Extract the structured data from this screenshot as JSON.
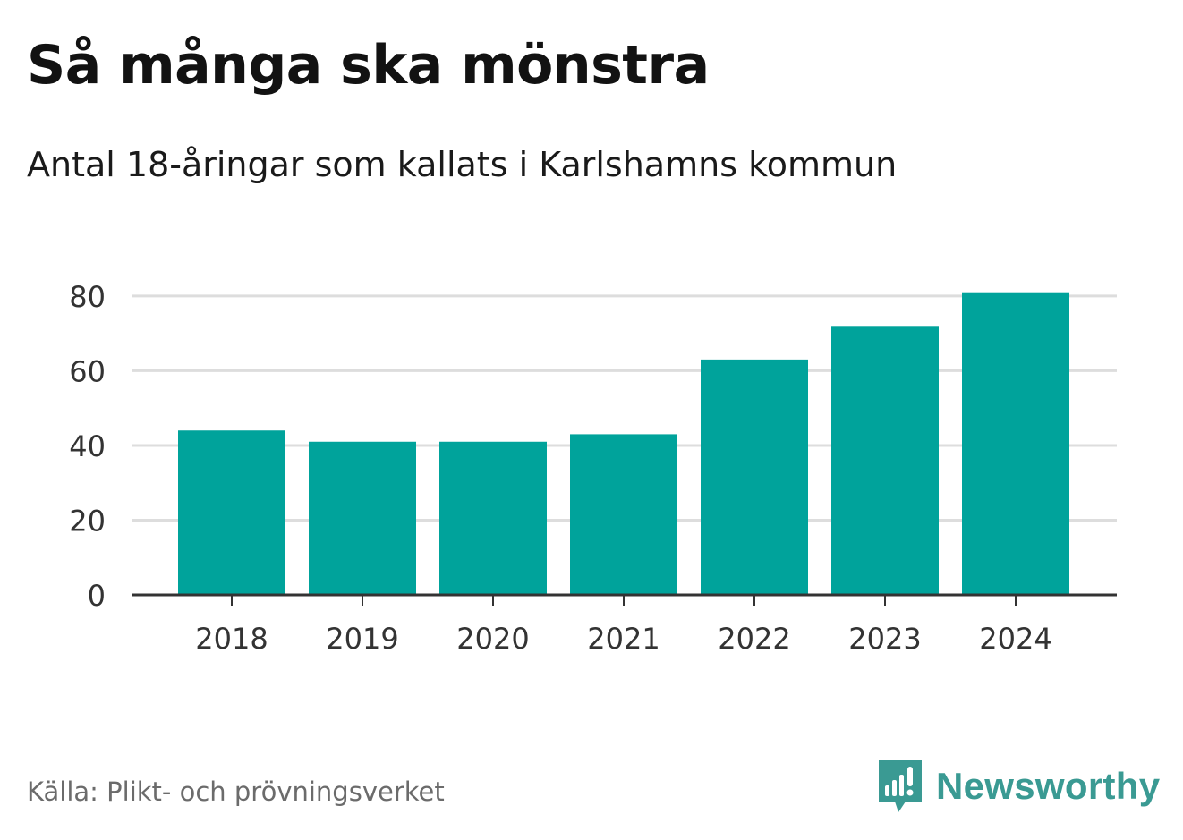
{
  "chart_data": {
    "type": "bar",
    "title": "Så många ska mönstra",
    "subtitle": "Antal 18-åringar som kallats i Karlshamns kommun",
    "categories": [
      "2018",
      "2019",
      "2020",
      "2021",
      "2022",
      "2023",
      "2024"
    ],
    "values": [
      44,
      41,
      41,
      43,
      63,
      72,
      81
    ],
    "xlabel": "",
    "ylabel": "",
    "ylim": [
      0,
      85
    ],
    "yticks": [
      0,
      20,
      40,
      60,
      80
    ],
    "grid": true,
    "bar_color": "#00a39b",
    "grid_color": "#dddddd",
    "axis_color": "#333333"
  },
  "footer": {
    "source": "Källa: Plikt- och prövningsverket",
    "brand": "Newsworthy",
    "brand_icon": "newsworthy-logo-icon",
    "brand_color": "#3a9a93"
  }
}
